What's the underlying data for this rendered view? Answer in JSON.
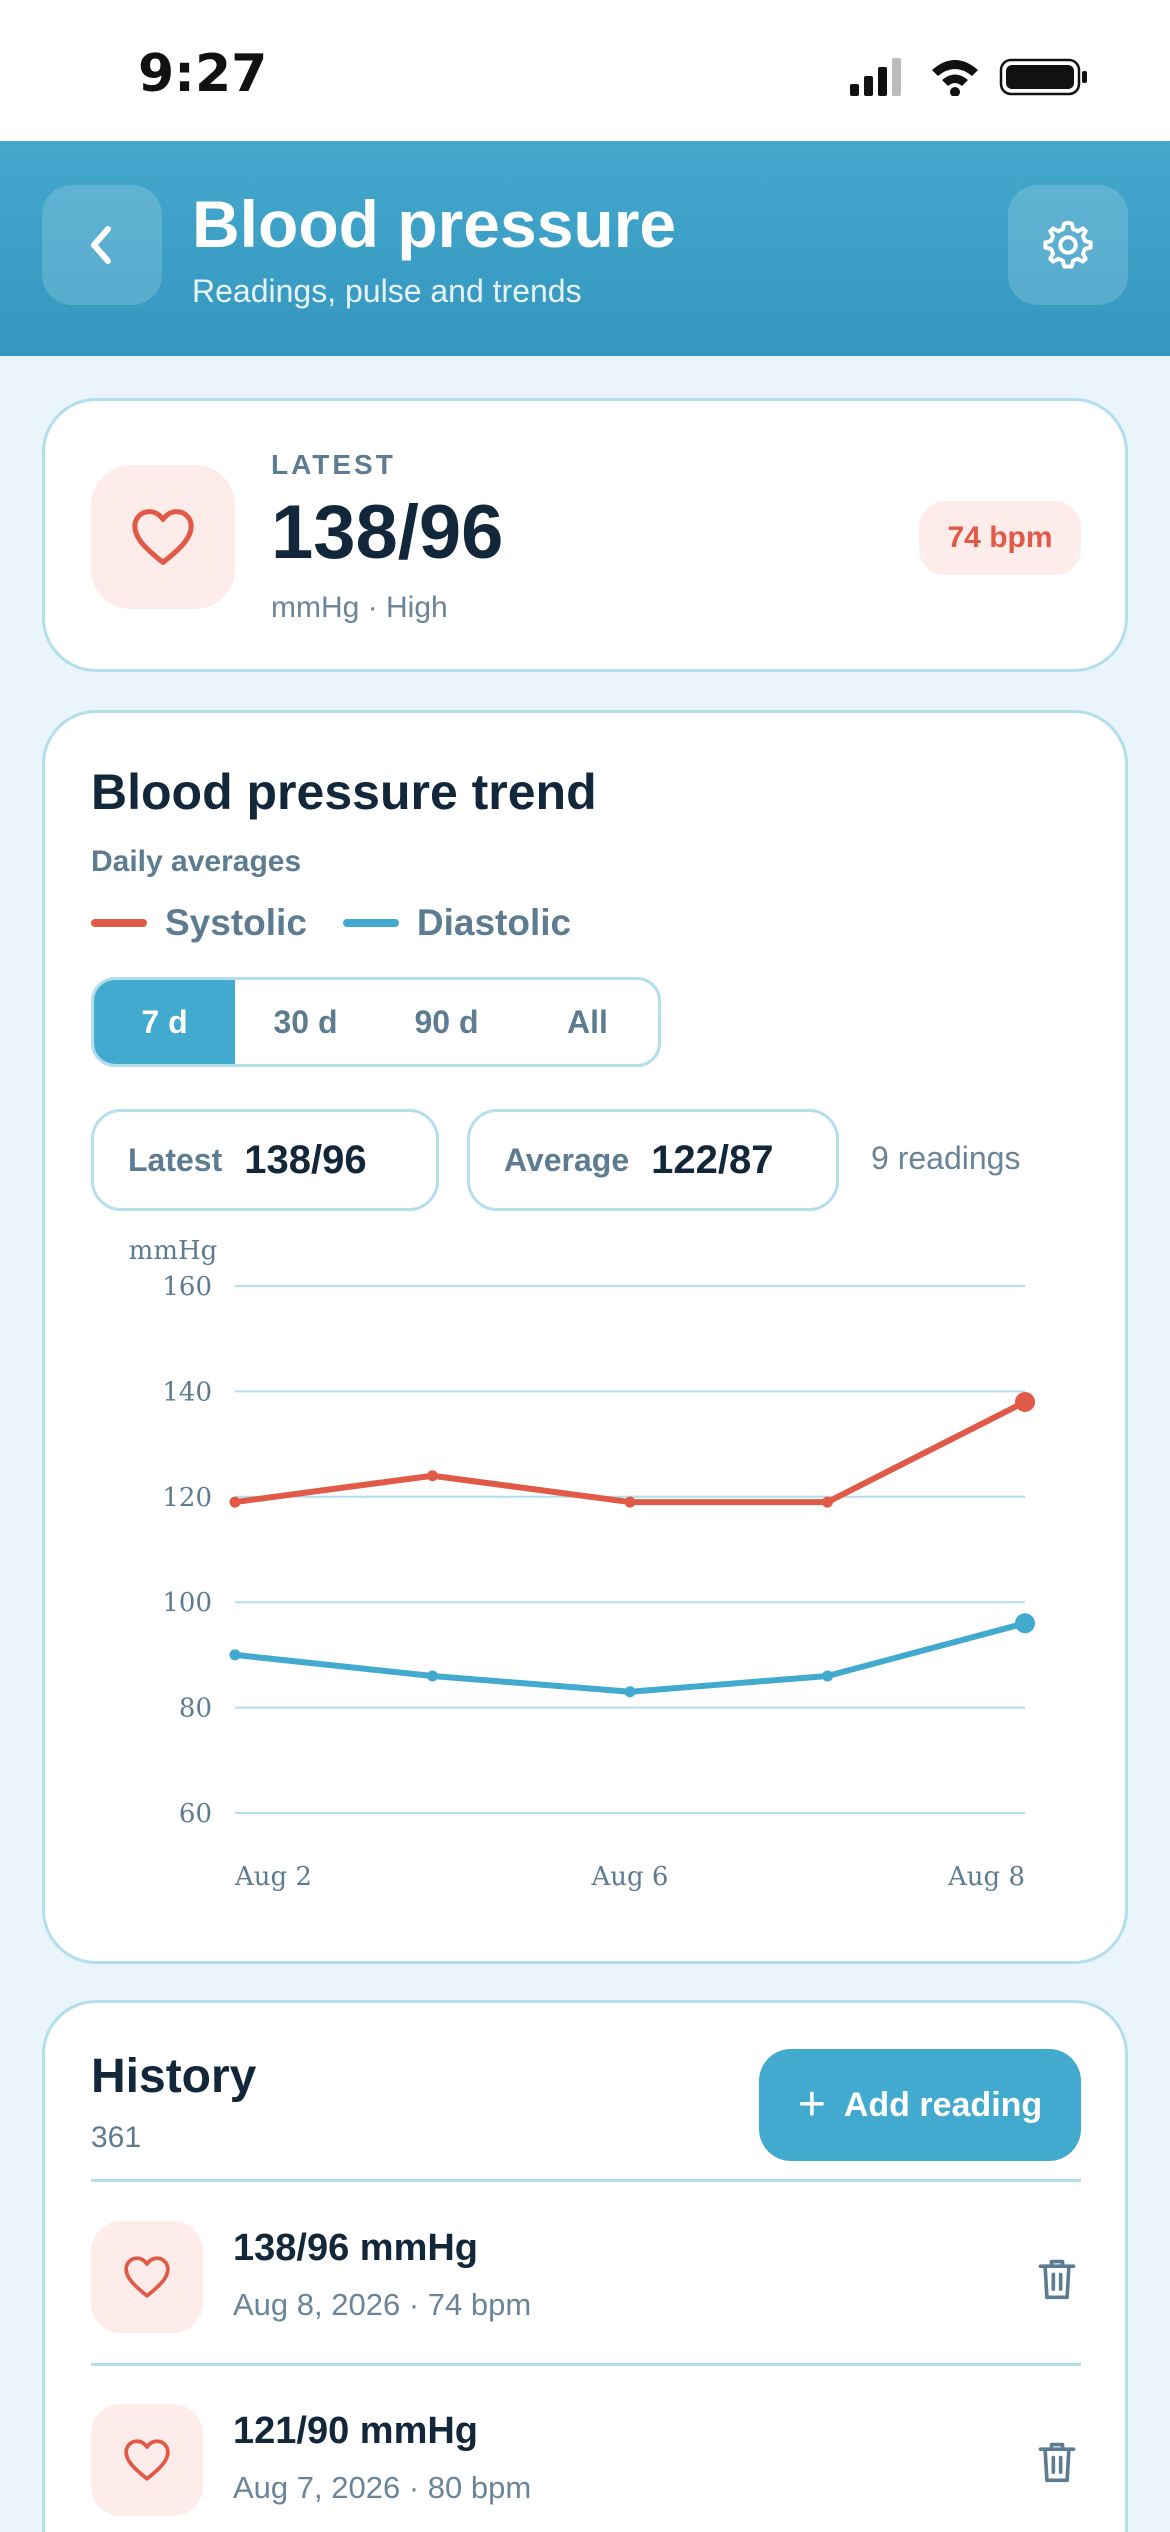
{
  "status_bar": {
    "time": "9:27"
  },
  "header": {
    "title": "Blood pressure",
    "subtitle": "Readings, pulse and trends"
  },
  "latest": {
    "label": "LATEST",
    "value": "138/96",
    "sub": "mmHg · High",
    "pulse": "74 bpm"
  },
  "trend": {
    "title": "Blood pressure trend",
    "subtitle": "Daily averages",
    "legend": [
      {
        "label": "Systolic",
        "color": "#e05a47"
      },
      {
        "label": "Diastolic",
        "color": "#42a9cf"
      }
    ],
    "ranges": [
      "7 d",
      "30 d",
      "90 d",
      "All"
    ],
    "active_range": "7 d",
    "latest_chip": {
      "label": "Latest",
      "value": "138/96"
    },
    "average_chip": {
      "label": "Average",
      "value": "122/87"
    },
    "readings": "9 readings"
  },
  "chart_data": {
    "type": "line",
    "ylabel": "mmHg",
    "ylim": [
      60,
      160
    ],
    "yticks": [
      160,
      140,
      120,
      100,
      80,
      60
    ],
    "x_labels": [
      {
        "label": "Aug 2",
        "index": 0
      },
      {
        "label": "Aug 6",
        "index": 2
      },
      {
        "label": "Aug 8",
        "index": 4
      }
    ],
    "grid": true,
    "series": [
      {
        "name": "Systolic",
        "color": "#e05a47",
        "values": [
          119,
          124,
          119,
          119,
          138
        ]
      },
      {
        "name": "Diastolic",
        "color": "#42a9cf",
        "values": [
          90,
          86,
          83,
          86,
          96
        ]
      }
    ]
  },
  "history": {
    "title": "History",
    "count": "361",
    "add_label": "Add reading",
    "rows": [
      {
        "value": "138/96 mmHg",
        "sub": "Aug 8, 2026 · 74 bpm"
      },
      {
        "value": "121/90 mmHg",
        "sub": "Aug 7, 2026 · 80 bpm"
      }
    ]
  }
}
